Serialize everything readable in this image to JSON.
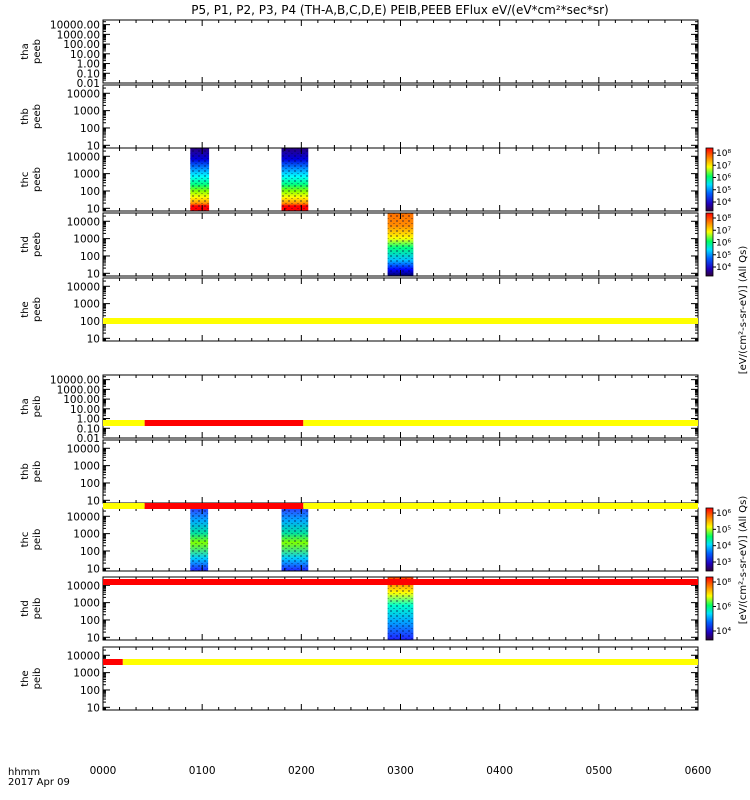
{
  "title": "P5, P1, P2, P3, P4 (TH-A,B,C,D,E) PEIB,PEEB EFlux eV/(eV*cm²*sec*sr)",
  "time_axis": {
    "label_line1": "hhmm",
    "label_line2": "2017 Apr 09",
    "ticks": [
      "0000",
      "0100",
      "0200",
      "0300",
      "0400",
      "0500",
      "0600"
    ]
  },
  "colorbar_labels": {
    "peeb": "[eV/(cm²-s-sr-eV)] (All Qs)",
    "peib": "[eV/(cm²-s-sr-eV)] (All Qs)"
  },
  "colors": {
    "flag_yellow": "#ffff00",
    "flag_red": "#ff0000",
    "axis": "#000000"
  },
  "chart_data": {
    "type": "heatmap",
    "x_unit": "hours since 2017 Apr 09 00:00",
    "x_range": [
      0,
      6
    ],
    "y_scale": "log",
    "y_unit": "eV",
    "panels": [
      {
        "probe": "tha",
        "product": "peeb",
        "label": [
          "tha",
          "peeb"
        ],
        "y_ticks": [
          "10000.00",
          "1000.00",
          "100.00",
          "10.00",
          "1.00",
          "0.10",
          "0.01"
        ],
        "ylim": [
          0.01,
          30000
        ],
        "data_blocks": [],
        "colorbar": null
      },
      {
        "probe": "thb",
        "product": "peeb",
        "label": [
          "thb",
          "peeb"
        ],
        "y_ticks": [
          "10000",
          "1000",
          "100",
          "10"
        ],
        "ylim": [
          7,
          30000
        ],
        "data_blocks": [],
        "colorbar": null
      },
      {
        "probe": "thc",
        "product": "peeb",
        "label": [
          "thc",
          "peeb"
        ],
        "y_ticks": [
          "10000",
          "1000",
          "100",
          "10"
        ],
        "ylim": [
          7,
          30000
        ],
        "data_blocks": [
          {
            "t_start": 0.88,
            "t_end": 1.07,
            "pattern": "electron"
          },
          {
            "t_start": 1.8,
            "t_end": 2.07,
            "pattern": "electron"
          }
        ],
        "colorbar": {
          "tick_labels": [
            "10⁸",
            "10⁷",
            "10⁶",
            "10⁵",
            "10⁴"
          ]
        }
      },
      {
        "probe": "thd",
        "product": "peeb",
        "label": [
          "thd",
          "peeb"
        ],
        "y_ticks": [
          "10000",
          "1000",
          "100",
          "10"
        ],
        "ylim": [
          7,
          30000
        ],
        "data_blocks": [
          {
            "t_start": 2.87,
            "t_end": 3.13,
            "pattern": "electron_d"
          }
        ],
        "colorbar": {
          "tick_labels": [
            "10⁸",
            "10⁷",
            "10⁶",
            "10⁵",
            "10⁴"
          ]
        }
      },
      {
        "probe": "the",
        "product": "peeb",
        "label": [
          "the",
          "peeb"
        ],
        "y_ticks": [
          "10000",
          "1000",
          "100",
          "10"
        ],
        "ylim": [
          7,
          30000
        ],
        "data_blocks": [],
        "colorbar": null
      },
      {
        "probe": "tha",
        "product": "peib",
        "label": [
          "tha",
          "peib"
        ],
        "y_ticks": [
          "10000.00",
          "1000.00",
          "100.00",
          "10.00",
          "1.00",
          "0.10",
          "0.01"
        ],
        "ylim": [
          0.01,
          30000
        ],
        "data_blocks": [],
        "colorbar": null
      },
      {
        "probe": "thb",
        "product": "peib",
        "label": [
          "thb",
          "peib"
        ],
        "y_ticks": [
          "10000",
          "1000",
          "100",
          "10"
        ],
        "ylim": [
          7,
          30000
        ],
        "data_blocks": [],
        "colorbar": null
      },
      {
        "probe": "thc",
        "product": "peib",
        "label": [
          "thc",
          "peib"
        ],
        "y_ticks": [
          "10000",
          "1000",
          "100",
          "10"
        ],
        "ylim": [
          7,
          30000
        ],
        "data_blocks": [
          {
            "t_start": 0.88,
            "t_end": 1.06,
            "pattern": "ion"
          },
          {
            "t_start": 1.8,
            "t_end": 2.07,
            "pattern": "ion"
          }
        ],
        "colorbar": {
          "tick_labels": [
            "10⁶",
            "10⁵",
            "10⁴",
            "10³"
          ]
        }
      },
      {
        "probe": "thd",
        "product": "peib",
        "label": [
          "thd",
          "peib"
        ],
        "y_ticks": [
          "10000",
          "1000",
          "100",
          "10"
        ],
        "ylim": [
          7,
          30000
        ],
        "data_blocks": [
          {
            "t_start": 2.87,
            "t_end": 3.13,
            "pattern": "ion_d"
          }
        ],
        "colorbar": {
          "tick_labels": [
            "10⁸",
            "10⁶",
            "10⁴"
          ]
        }
      },
      {
        "probe": "the",
        "product": "peib",
        "label": [
          "the",
          "peib"
        ],
        "y_ticks": [
          "10000",
          "1000",
          "100",
          "10"
        ],
        "ylim": [
          7,
          30000
        ],
        "data_blocks": [],
        "colorbar": null
      }
    ],
    "flag_bars": [
      {
        "after_panel": 4,
        "segments": [
          {
            "t_start": 0,
            "t_end": 6,
            "color": "yellow"
          }
        ]
      },
      {
        "after_panel": 5,
        "segments": [
          {
            "t_start": 0,
            "t_end": 0.42,
            "color": "yellow"
          },
          {
            "t_start": 0.42,
            "t_end": 2.02,
            "color": "red"
          },
          {
            "t_start": 2.02,
            "t_end": 6,
            "color": "yellow"
          }
        ]
      },
      {
        "after_panel": 6,
        "segments": [
          {
            "t_start": 0,
            "t_end": 0.42,
            "color": "yellow"
          },
          {
            "t_start": 0.42,
            "t_end": 2.02,
            "color": "red"
          },
          {
            "t_start": 2.02,
            "t_end": 6,
            "color": "yellow"
          }
        ]
      },
      {
        "after_panel": 7,
        "segments": [
          {
            "t_start": 0,
            "t_end": 6,
            "color": "red"
          }
        ]
      },
      {
        "after_panel": 8,
        "segments": [
          {
            "t_start": 0,
            "t_end": 0.2,
            "color": "red"
          },
          {
            "t_start": 0.2,
            "t_end": 6,
            "color": "yellow"
          }
        ]
      }
    ]
  }
}
